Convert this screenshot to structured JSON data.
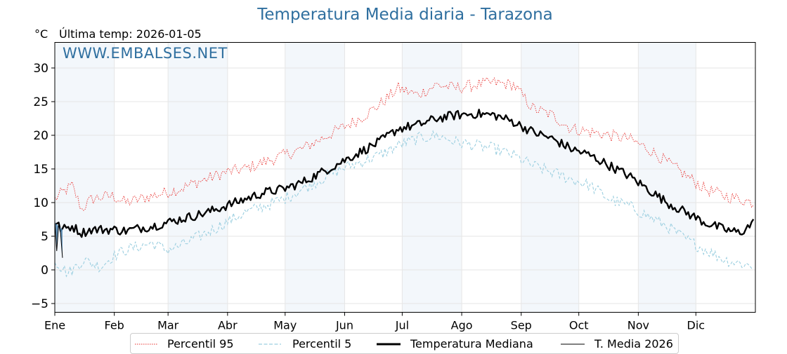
{
  "chart_data": {
    "type": "line",
    "title": "Temperatura Media diaria - Tarazona",
    "unit_label": "°C",
    "subtitle": "Última temp: 2026-01-05",
    "watermark": "WWW.EMBALSES.NET",
    "ylim": [
      -6.3,
      33.8
    ],
    "yticks": [
      -5,
      0,
      5,
      10,
      15,
      20,
      25,
      30
    ],
    "ytick_labels": [
      "−5",
      "0",
      "5",
      "10",
      "15",
      "20",
      "25",
      "30"
    ],
    "months": [
      "Ene",
      "Feb",
      "Mar",
      "Abr",
      "May",
      "Jun",
      "Jul",
      "Ago",
      "Sep",
      "Oct",
      "Nov",
      "Dic"
    ],
    "shaded_months": [
      0,
      2,
      4,
      6,
      8,
      10
    ],
    "grid": true,
    "legend_position": "bottom",
    "x_unit": "day of year",
    "series": [
      {
        "name": "Percentil 95",
        "color": "#e8312f",
        "style": "dotted",
        "x": [
          1,
          5,
          10,
          15,
          20,
          25,
          31,
          38,
          45,
          52,
          59,
          66,
          73,
          80,
          90,
          100,
          110,
          120,
          130,
          140,
          150,
          160,
          170,
          180,
          190,
          200,
          210,
          220,
          230,
          240,
          250,
          260,
          270,
          280,
          290,
          300,
          310,
          320,
          330,
          340,
          350,
          358,
          365
        ],
        "values": [
          10.5,
          11.5,
          12.5,
          9.0,
          10.5,
          10.8,
          11.0,
          10.0,
          10.5,
          11.0,
          11.5,
          12.0,
          12.8,
          13.5,
          14.5,
          15.0,
          16.0,
          17.0,
          18.0,
          19.5,
          21.0,
          22.5,
          24.5,
          27.0,
          26.0,
          27.5,
          27.0,
          27.5,
          27.8,
          27.5,
          24.0,
          23.0,
          21.0,
          20.5,
          20.0,
          19.5,
          18.0,
          16.0,
          14.0,
          12.0,
          11.0,
          10.5,
          10.0
        ]
      },
      {
        "name": "Percentil 5",
        "color": "#9ccfe0",
        "style": "dashed",
        "x": [
          1,
          4,
          8,
          12,
          16,
          20,
          25,
          31,
          38,
          45,
          52,
          59,
          66,
          73,
          80,
          90,
          100,
          110,
          120,
          130,
          140,
          150,
          160,
          170,
          180,
          190,
          200,
          210,
          220,
          230,
          240,
          250,
          260,
          270,
          280,
          290,
          300,
          310,
          320,
          330,
          340,
          350,
          358,
          365
        ],
        "values": [
          1.5,
          0.5,
          -0.5,
          0.5,
          1.5,
          1.0,
          0.5,
          2.0,
          3.0,
          3.5,
          4.0,
          3.0,
          3.5,
          4.5,
          5.5,
          7.0,
          8.5,
          9.5,
          10.5,
          12.0,
          13.5,
          15.0,
          16.0,
          17.0,
          18.5,
          19.5,
          20.0,
          19.0,
          18.5,
          18.0,
          17.0,
          15.5,
          14.5,
          13.5,
          12.5,
          10.5,
          9.5,
          8.0,
          6.5,
          4.5,
          3.0,
          1.5,
          1.0,
          0.5
        ]
      },
      {
        "name": "Temperatura Mediana",
        "color": "#000000",
        "style": "solid-thick",
        "x": [
          1,
          5,
          10,
          15,
          20,
          25,
          31,
          38,
          45,
          52,
          59,
          66,
          73,
          80,
          90,
          100,
          110,
          120,
          130,
          140,
          150,
          160,
          170,
          180,
          190,
          200,
          210,
          220,
          230,
          240,
          250,
          260,
          270,
          280,
          290,
          300,
          310,
          320,
          330,
          340,
          350,
          358,
          365
        ],
        "values": [
          7.0,
          6.0,
          6.5,
          5.5,
          6.0,
          6.0,
          6.0,
          5.8,
          6.2,
          6.5,
          7.0,
          7.5,
          8.0,
          8.5,
          9.5,
          10.5,
          11.5,
          12.0,
          13.0,
          14.5,
          16.0,
          17.5,
          19.0,
          21.0,
          21.5,
          22.5,
          23.0,
          23.2,
          23.0,
          22.0,
          20.5,
          19.5,
          18.0,
          17.0,
          15.5,
          14.0,
          12.0,
          10.0,
          8.5,
          7.0,
          6.0,
          5.5,
          7.0
        ]
      },
      {
        "name": "T. Media 2026",
        "color": "#000000",
        "fill": "#4f86b0",
        "style": "solid-thin",
        "x": [
          1,
          2,
          3,
          4,
          5
        ],
        "values": [
          7.2,
          2.8,
          6.8,
          5.5,
          1.8
        ]
      }
    ]
  }
}
